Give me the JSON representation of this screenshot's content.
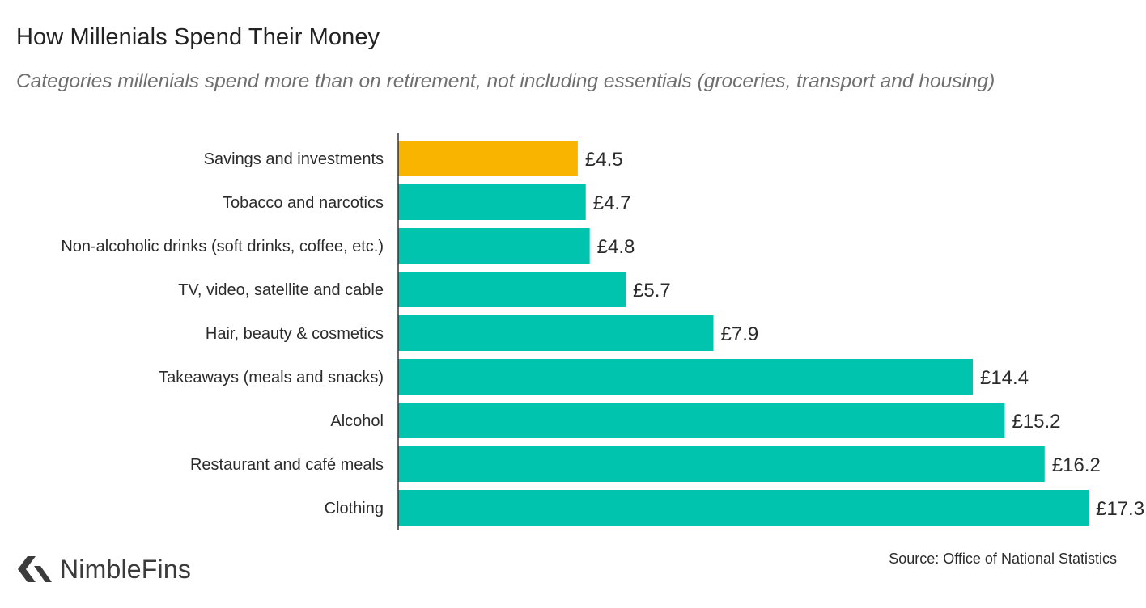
{
  "header": {
    "title": "How Millenials Spend Their Money",
    "subtitle": "Categories millenials spend more than on retirement, not including essentials (groceries, transport and housing)"
  },
  "footer": {
    "source": "Source: Office of National Statistics",
    "brand": "NimbleFins"
  },
  "colors": {
    "highlight": "#F9B400",
    "bar": "#00C4AE",
    "axis": "#333333"
  },
  "chart_data": {
    "type": "bar",
    "orientation": "horizontal",
    "title": "How Millenials Spend Their Money",
    "subtitle": "Categories millenials spend more than on retirement, not including essentials (groceries, transport and housing)",
    "categories": [
      "Savings and investments",
      "Tobacco and narcotics",
      "Non-alcoholic drinks (soft drinks, coffee, etc.)",
      "TV, video, satellite and cable",
      "Hair, beauty & cosmetics",
      "Takeaways (meals and snacks)",
      "Alcohol",
      "Restaurant and café meals",
      "Clothing"
    ],
    "values": [
      4.5,
      4.7,
      4.8,
      5.7,
      7.9,
      14.4,
      15.2,
      16.2,
      17.3
    ],
    "value_labels": [
      "£4.5",
      "£4.7",
      "£4.8",
      "£5.7",
      "£7.9",
      "£14.4",
      "£15.2",
      "£16.2",
      "£17.3"
    ],
    "highlighted_category": "Savings and investments",
    "xlim": [
      0,
      17.3
    ],
    "xlabel": "",
    "ylabel": "",
    "grid": false,
    "legend": "none"
  }
}
